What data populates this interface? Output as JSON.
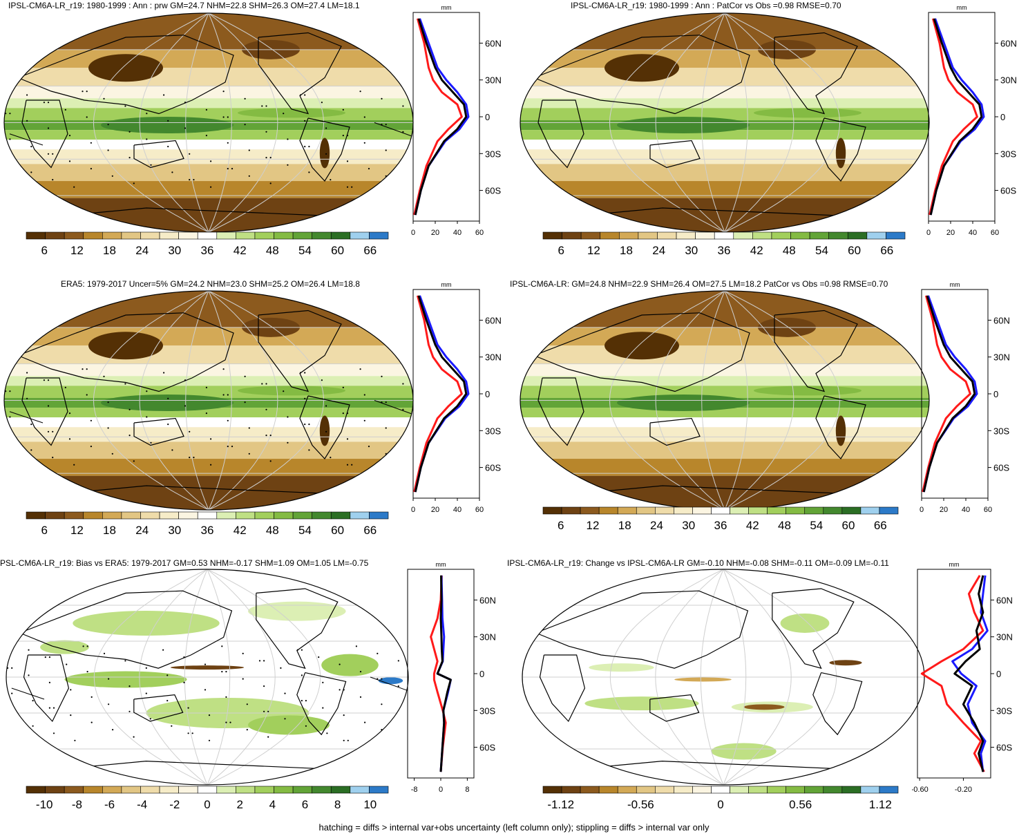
{
  "colors": {
    "brown_green_scale": [
      "#543005",
      "#6e4213",
      "#8c5a1e",
      "#b8862b",
      "#d3a956",
      "#e2c684",
      "#efdcaa",
      "#f6ecc8",
      "#fbf5e2",
      "#ffffff",
      "#dcefb4",
      "#bfe084",
      "#a2cf5c",
      "#84bb43",
      "#62a437",
      "#43882e",
      "#2b6e24",
      "#9fd0ee",
      "#2c7ac8"
    ],
    "obs_line": "#000000",
    "nh_line": "#1a1aff",
    "sh_line": "#ff1a1a"
  },
  "panels": [
    {
      "id": "p1",
      "title": "IPSL-CM6A-LR_r19: 1980-1999 : Ann : prw GM=24.7 NHM=22.8 SHM=26.3 OM=27.4 LM=18.1",
      "map_kind": "mean",
      "hatched": true,
      "colorbar_labels": [
        "6",
        "12",
        "18",
        "24",
        "30",
        "36",
        "42",
        "48",
        "54",
        "60",
        "66"
      ],
      "zonal": {
        "unit": "mm",
        "x_ticks": [
          "0",
          "20",
          "40",
          "60"
        ],
        "xlim": [
          0,
          60
        ],
        "lat_labels": [
          "60N",
          "30N",
          "0",
          "30S",
          "60S"
        ],
        "series_black": [
          [
            -80,
            2
          ],
          [
            -60,
            7
          ],
          [
            -40,
            14
          ],
          [
            -20,
            28
          ],
          [
            -10,
            40
          ],
          [
            0,
            48
          ],
          [
            10,
            46
          ],
          [
            20,
            36
          ],
          [
            30,
            26
          ],
          [
            40,
            20
          ],
          [
            60,
            12
          ],
          [
            80,
            5
          ]
        ],
        "series_blue": [
          [
            -80,
            2
          ],
          [
            -60,
            7
          ],
          [
            -40,
            14
          ],
          [
            -20,
            29
          ],
          [
            -10,
            42
          ],
          [
            0,
            50
          ],
          [
            10,
            48
          ],
          [
            20,
            40
          ],
          [
            30,
            30
          ],
          [
            40,
            22
          ],
          [
            60,
            14
          ],
          [
            80,
            6
          ]
        ],
        "series_red": [
          [
            -80,
            1
          ],
          [
            -60,
            6
          ],
          [
            -40,
            12
          ],
          [
            -20,
            22
          ],
          [
            -10,
            32
          ],
          [
            0,
            44
          ],
          [
            10,
            40
          ],
          [
            20,
            26
          ],
          [
            30,
            18
          ],
          [
            40,
            14
          ],
          [
            60,
            10
          ],
          [
            80,
            4
          ]
        ]
      }
    },
    {
      "id": "p2",
      "title": "IPSL-CM6A-LR_r19: 1980-1999 : Ann : PatCor vs Obs =0.98 RMSE=0.70",
      "map_kind": "mean",
      "hatched": false,
      "colorbar_labels": [
        "6",
        "12",
        "18",
        "24",
        "30",
        "36",
        "42",
        "48",
        "54",
        "60",
        "66"
      ],
      "zonal": {
        "unit": "mm",
        "x_ticks": [
          "0",
          "20",
          "40",
          "60"
        ],
        "xlim": [
          0,
          60
        ],
        "lat_labels": [
          "60N",
          "30N",
          "0",
          "30S",
          "60S"
        ],
        "series_black": [
          [
            -80,
            2
          ],
          [
            -60,
            7
          ],
          [
            -40,
            14
          ],
          [
            -20,
            28
          ],
          [
            -10,
            40
          ],
          [
            0,
            48
          ],
          [
            10,
            46
          ],
          [
            20,
            36
          ],
          [
            30,
            26
          ],
          [
            40,
            20
          ],
          [
            60,
            12
          ],
          [
            80,
            5
          ]
        ],
        "series_blue": [
          [
            -80,
            2
          ],
          [
            -60,
            7
          ],
          [
            -40,
            14
          ],
          [
            -20,
            29
          ],
          [
            -10,
            42
          ],
          [
            0,
            50
          ],
          [
            10,
            48
          ],
          [
            20,
            40
          ],
          [
            30,
            30
          ],
          [
            40,
            22
          ],
          [
            60,
            14
          ],
          [
            80,
            6
          ]
        ],
        "series_red": [
          [
            -80,
            1
          ],
          [
            -60,
            6
          ],
          [
            -40,
            12
          ],
          [
            -20,
            22
          ],
          [
            -10,
            32
          ],
          [
            0,
            44
          ],
          [
            10,
            40
          ],
          [
            20,
            26
          ],
          [
            30,
            18
          ],
          [
            40,
            14
          ],
          [
            60,
            10
          ],
          [
            80,
            4
          ]
        ]
      }
    },
    {
      "id": "p3",
      "title": "ERA5: 1979-2017 Uncer=5% GM=24.2 NHM=23.0 SHM=25.2 OM=26.4 LM=18.8",
      "map_kind": "mean",
      "hatched": true,
      "colorbar_labels": [
        "6",
        "12",
        "18",
        "24",
        "30",
        "36",
        "42",
        "48",
        "54",
        "60",
        "66"
      ],
      "zonal": {
        "unit": "mm",
        "x_ticks": [
          "0",
          "20",
          "40",
          "60"
        ],
        "xlim": [
          0,
          60
        ],
        "lat_labels": [
          "60N",
          "30N",
          "0",
          "30S",
          "60S"
        ],
        "series_black": [
          [
            -80,
            2
          ],
          [
            -60,
            7
          ],
          [
            -40,
            14
          ],
          [
            -20,
            28
          ],
          [
            -10,
            40
          ],
          [
            0,
            48
          ],
          [
            10,
            46
          ],
          [
            20,
            36
          ],
          [
            30,
            26
          ],
          [
            40,
            20
          ],
          [
            60,
            12
          ],
          [
            80,
            5
          ]
        ],
        "series_blue": [
          [
            -80,
            2
          ],
          [
            -60,
            7
          ],
          [
            -40,
            14
          ],
          [
            -20,
            29
          ],
          [
            -10,
            42
          ],
          [
            0,
            50
          ],
          [
            10,
            48
          ],
          [
            20,
            40
          ],
          [
            30,
            30
          ],
          [
            40,
            22
          ],
          [
            60,
            14
          ],
          [
            80,
            6
          ]
        ],
        "series_red": [
          [
            -80,
            1
          ],
          [
            -60,
            6
          ],
          [
            -40,
            12
          ],
          [
            -20,
            22
          ],
          [
            -10,
            32
          ],
          [
            0,
            44
          ],
          [
            10,
            40
          ],
          [
            20,
            26
          ],
          [
            30,
            18
          ],
          [
            40,
            14
          ],
          [
            60,
            10
          ],
          [
            80,
            4
          ]
        ]
      }
    },
    {
      "id": "p4",
      "title": "IPSL-CM6A-LR: GM=24.8 NHM=22.9 SHM=26.4 OM=27.5 LM=18.2 PatCor vs Obs =0.98 RMSE=0.70",
      "map_kind": "mean",
      "hatched": false,
      "colorbar_labels": [
        "6",
        "12",
        "18",
        "24",
        "30",
        "36",
        "42",
        "48",
        "54",
        "60",
        "66"
      ],
      "zonal": {
        "unit": "mm",
        "x_ticks": [
          "0",
          "20",
          "40",
          "60"
        ],
        "xlim": [
          0,
          60
        ],
        "lat_labels": [
          "60N",
          "30N",
          "0",
          "30S",
          "60S"
        ],
        "series_black": [
          [
            -80,
            2
          ],
          [
            -60,
            7
          ],
          [
            -40,
            14
          ],
          [
            -20,
            28
          ],
          [
            -10,
            40
          ],
          [
            0,
            48
          ],
          [
            10,
            46
          ],
          [
            20,
            36
          ],
          [
            30,
            26
          ],
          [
            40,
            20
          ],
          [
            60,
            12
          ],
          [
            80,
            5
          ]
        ],
        "series_blue": [
          [
            -80,
            2
          ],
          [
            -60,
            7
          ],
          [
            -40,
            14
          ],
          [
            -20,
            29
          ],
          [
            -10,
            42
          ],
          [
            0,
            50
          ],
          [
            10,
            48
          ],
          [
            20,
            40
          ],
          [
            30,
            30
          ],
          [
            40,
            22
          ],
          [
            60,
            14
          ],
          [
            80,
            6
          ]
        ],
        "series_red": [
          [
            -80,
            1
          ],
          [
            -60,
            6
          ],
          [
            -40,
            12
          ],
          [
            -20,
            22
          ],
          [
            -10,
            32
          ],
          [
            0,
            44
          ],
          [
            10,
            40
          ],
          [
            20,
            26
          ],
          [
            30,
            18
          ],
          [
            40,
            14
          ],
          [
            60,
            10
          ],
          [
            80,
            4
          ]
        ]
      }
    },
    {
      "id": "p5",
      "title": "PSL-CM6A-LR_r19: Bias vs ERA5: 1979-2017 GM=0.53 NHM=-0.17 SHM=1.09 OM=1.05 LM=-0.75",
      "map_kind": "bias",
      "hatched": true,
      "colorbar_labels": [
        "-10",
        "-8",
        "-6",
        "-4",
        "-2",
        "0",
        "2",
        "4",
        "6",
        "8",
        "10"
      ],
      "zonal": {
        "unit": "mm",
        "x_ticks": [
          "-8",
          "0",
          "8"
        ],
        "xlim": [
          -10,
          10
        ],
        "lat_labels": [
          "60N",
          "30N",
          "0",
          "30S",
          "60S"
        ],
        "series_black": [
          [
            -80,
            0
          ],
          [
            -60,
            0.5
          ],
          [
            -40,
            1
          ],
          [
            -30,
            0.8
          ],
          [
            -15,
            2
          ],
          [
            -5,
            3
          ],
          [
            0,
            -1
          ],
          [
            10,
            0.5
          ],
          [
            20,
            0.3
          ],
          [
            30,
            0.2
          ],
          [
            45,
            0
          ],
          [
            60,
            0.2
          ],
          [
            80,
            0.1
          ]
        ],
        "series_blue": [
          [
            -80,
            0
          ],
          [
            -60,
            0.5
          ],
          [
            -40,
            1
          ],
          [
            -30,
            0.8
          ],
          [
            -15,
            2.2
          ],
          [
            -5,
            3
          ],
          [
            0,
            -1
          ],
          [
            10,
            0.6
          ],
          [
            20,
            0.8
          ],
          [
            30,
            1
          ],
          [
            45,
            0.5
          ],
          [
            60,
            0.4
          ],
          [
            80,
            0.2
          ]
        ],
        "series_red": [
          [
            -80,
            0
          ],
          [
            -60,
            0.6
          ],
          [
            -40,
            1.5
          ],
          [
            -30,
            0.6
          ],
          [
            -15,
            -1
          ],
          [
            -5,
            -2
          ],
          [
            0,
            -2
          ],
          [
            10,
            -1
          ],
          [
            20,
            -2
          ],
          [
            30,
            -3
          ],
          [
            45,
            -1
          ],
          [
            60,
            0
          ],
          [
            80,
            0.3
          ]
        ]
      }
    },
    {
      "id": "p6",
      "title": "IPSL-CM6A-LR_r19: Change vs IPSL-CM6A-LR GM=-0.10 NHM=-0.08 SHM=-0.11 OM=-0.09 LM=-0.11",
      "map_kind": "change",
      "hatched": false,
      "colorbar_labels": [
        "-1.12",
        "-0.56",
        "0",
        "0.56",
        "1.12"
      ],
      "zonal": {
        "unit": "mm",
        "x_ticks": [
          "-0.60",
          "-0.20"
        ],
        "xlim": [
          -0.62,
          0.05
        ],
        "lat_labels": [
          "60N",
          "30N",
          "0",
          "30S",
          "60S"
        ],
        "series_black": [
          [
            -80,
            -0.02
          ],
          [
            -65,
            -0.06
          ],
          [
            -55,
            -0.02
          ],
          [
            -40,
            -0.1
          ],
          [
            -25,
            -0.2
          ],
          [
            -10,
            -0.12
          ],
          [
            0,
            -0.28
          ],
          [
            10,
            -0.18
          ],
          [
            20,
            -0.05
          ],
          [
            35,
            -0.08
          ],
          [
            50,
            -0.02
          ],
          [
            65,
            -0.06
          ],
          [
            80,
            -0.02
          ]
        ],
        "series_blue": [
          [
            -80,
            -0.02
          ],
          [
            -65,
            -0.04
          ],
          [
            -55,
            0
          ],
          [
            -40,
            -0.12
          ],
          [
            -25,
            -0.16
          ],
          [
            -10,
            -0.08
          ],
          [
            0,
            -0.22
          ],
          [
            10,
            -0.3
          ],
          [
            20,
            -0.12
          ],
          [
            35,
            0.02
          ],
          [
            50,
            -0.04
          ],
          [
            65,
            -0.02
          ],
          [
            80,
            0
          ]
        ],
        "series_red": [
          [
            -80,
            -0.01
          ],
          [
            -65,
            -0.1
          ],
          [
            -55,
            -0.04
          ],
          [
            -40,
            -0.2
          ],
          [
            -25,
            -0.35
          ],
          [
            -10,
            -0.4
          ],
          [
            0,
            -0.58
          ],
          [
            10,
            -0.4
          ],
          [
            20,
            -0.2
          ],
          [
            35,
            -0.02
          ],
          [
            50,
            -0.1
          ],
          [
            65,
            -0.15
          ],
          [
            80,
            -0.05
          ]
        ]
      }
    }
  ],
  "footer": "hatching = diffs > internal var+obs uncertainty (left column only); stippling = diffs > internal var only"
}
